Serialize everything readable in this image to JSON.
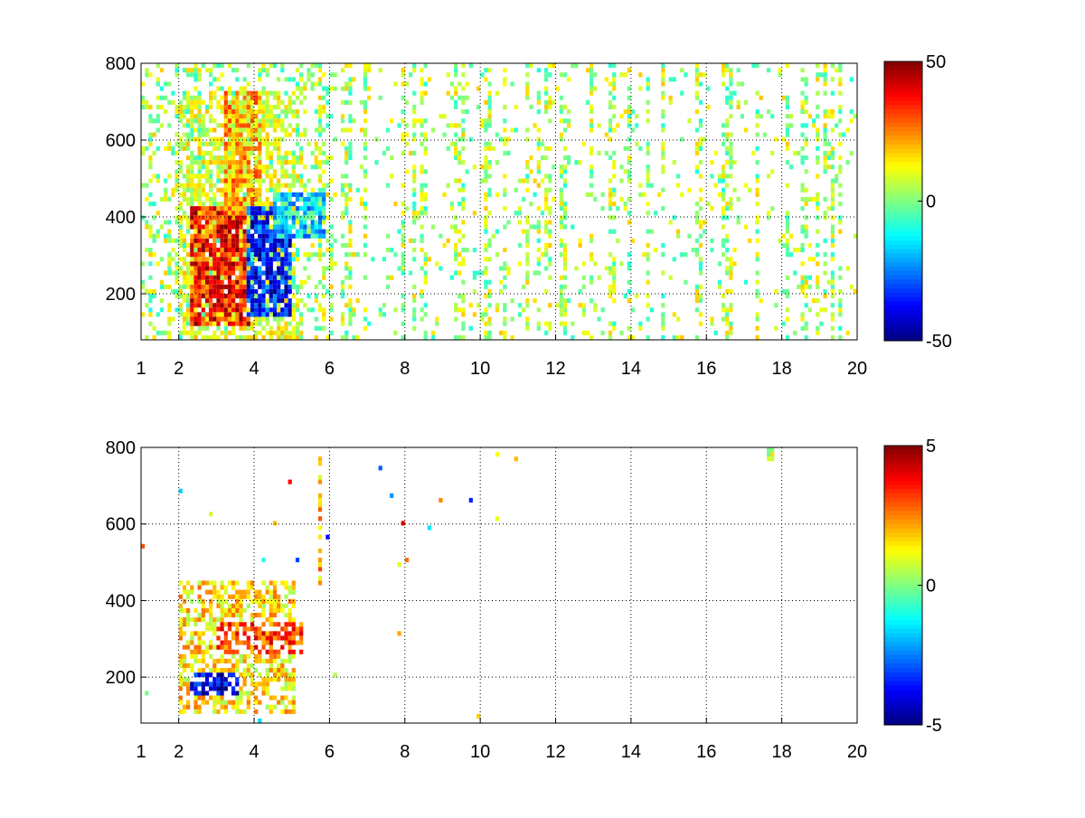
{
  "chart_data": [
    {
      "type": "heatmap",
      "title": "",
      "xlabel": "",
      "ylabel": "",
      "xlim": [
        1,
        20
      ],
      "ylim": [
        80,
        800
      ],
      "xticks": [
        "1",
        "2",
        "4",
        "6",
        "8",
        "10",
        "12",
        "14",
        "16",
        "18",
        "20"
      ],
      "xtick_values": [
        1,
        2,
        4,
        6,
        8,
        10,
        12,
        14,
        16,
        18,
        20
      ],
      "yticks": [
        "200",
        "400",
        "600",
        "800"
      ],
      "ytick_values": [
        200,
        400,
        600,
        800
      ],
      "grid": true,
      "colormap": "jet",
      "clim": [
        -50,
        50
      ],
      "colorbar_ticks": [
        "50",
        "0",
        "-50"
      ],
      "colorbar_tick_values": [
        50,
        0,
        -50
      ],
      "features": [
        {
          "region": "positive core",
          "x": [
            2.3,
            3.9
          ],
          "y": [
            110,
            420
          ],
          "value": 35
        },
        {
          "region": "positive plume",
          "x": [
            3.2,
            4.2
          ],
          "y": [
            400,
            720
          ],
          "value": 18
        },
        {
          "region": "negative core",
          "x": [
            3.8,
            4.9
          ],
          "y": [
            140,
            420
          ],
          "value": -35
        },
        {
          "region": "negative tail",
          "x": [
            4.5,
            5.8
          ],
          "y": [
            340,
            460
          ],
          "value": -15
        },
        {
          "region": "sparse background",
          "x": [
            1,
            20
          ],
          "y": [
            80,
            800
          ],
          "value": 0
        }
      ]
    },
    {
      "type": "heatmap",
      "title": "",
      "xlabel": "",
      "ylabel": "",
      "xlim": [
        1,
        20
      ],
      "ylim": [
        80,
        800
      ],
      "xticks": [
        "1",
        "2",
        "4",
        "6",
        "8",
        "10",
        "12",
        "14",
        "16",
        "18",
        "20"
      ],
      "xtick_values": [
        1,
        2,
        4,
        6,
        8,
        10,
        12,
        14,
        16,
        18,
        20
      ],
      "yticks": [
        "200",
        "400",
        "600",
        "800"
      ],
      "ytick_values": [
        200,
        400,
        600,
        800
      ],
      "grid": true,
      "colormap": "jet",
      "clim": [
        -5,
        5
      ],
      "colorbar_ticks": [
        "5",
        "0",
        "-5"
      ],
      "colorbar_tick_values": [
        5,
        0,
        -5
      ],
      "features": [
        {
          "region": "positive streak",
          "x": [
            2.6,
            3.0
          ],
          "y": [
            240,
            450
          ],
          "value": 4.5
        },
        {
          "region": "main cluster",
          "x": [
            2.0,
            5.0
          ],
          "y": [
            100,
            450
          ],
          "value": 1.5
        },
        {
          "region": "positive band",
          "x": [
            3.0,
            5.2
          ],
          "y": [
            260,
            340
          ],
          "value": 3
        },
        {
          "region": "negative spot",
          "x": [
            2.3,
            3.6
          ],
          "y": [
            150,
            200
          ],
          "value": -4
        },
        {
          "region": "vertical stripe",
          "x": [
            5.65,
            5.75
          ],
          "y": [
            380,
            770
          ],
          "value": 2
        },
        {
          "region": "isolated point",
          "x": [
            17.5,
            17.7
          ],
          "y": [
            760,
            790
          ],
          "value": 1
        }
      ]
    }
  ]
}
